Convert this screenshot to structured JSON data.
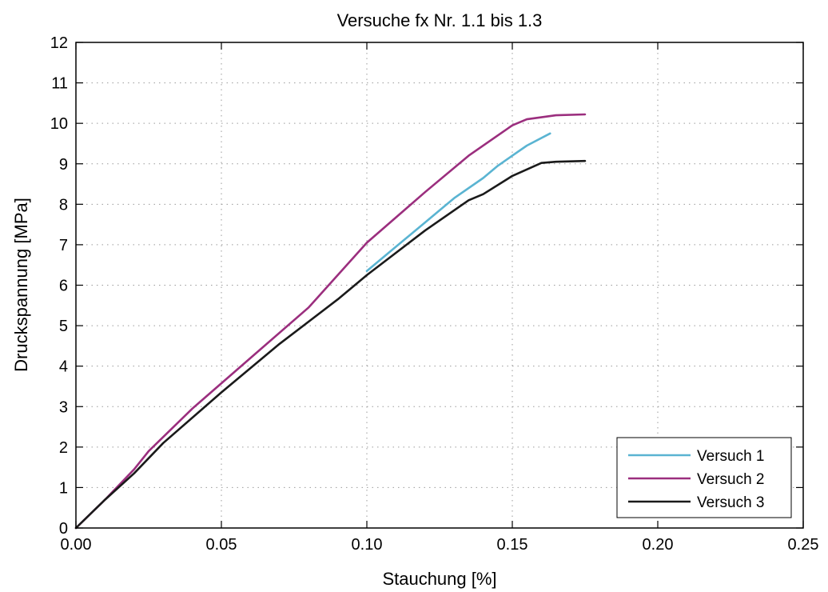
{
  "chart_data": {
    "type": "line",
    "title": "Versuche fx Nr. 1.1 bis 1.3",
    "xlabel": "Stauchung [%]",
    "ylabel": "Druckspannung [MPa]",
    "xlim": [
      0,
      0.25
    ],
    "ylim": [
      0,
      12
    ],
    "xticks": [
      0,
      0.05,
      0.1,
      0.15,
      0.2,
      0.25
    ],
    "xtick_labels": [
      "0.00",
      "0.05",
      "0.10",
      "0.15",
      "0.20",
      "0.25"
    ],
    "yticks": [
      0,
      1,
      2,
      3,
      4,
      5,
      6,
      7,
      8,
      9,
      10,
      11,
      12
    ],
    "ytick_labels": [
      "0",
      "1",
      "2",
      "3",
      "4",
      "5",
      "6",
      "7",
      "8",
      "9",
      "10",
      "11",
      "12"
    ],
    "grid": true,
    "legend_position": "bottom-right",
    "series": [
      {
        "name": "Versuch 1",
        "color": "#5ab4d2",
        "points": [
          [
            0.1,
            6.35
          ],
          [
            0.11,
            6.95
          ],
          [
            0.12,
            7.55
          ],
          [
            0.13,
            8.15
          ],
          [
            0.14,
            8.65
          ],
          [
            0.145,
            8.95
          ],
          [
            0.15,
            9.2
          ],
          [
            0.155,
            9.45
          ],
          [
            0.163,
            9.75
          ]
        ]
      },
      {
        "name": "Versuch 2",
        "color": "#9b2e7e",
        "points": [
          [
            0,
            0
          ],
          [
            0.01,
            0.7
          ],
          [
            0.02,
            1.45
          ],
          [
            0.025,
            1.9
          ],
          [
            0.04,
            2.95
          ],
          [
            0.06,
            4.2
          ],
          [
            0.08,
            5.45
          ],
          [
            0.1,
            7.05
          ],
          [
            0.12,
            8.3
          ],
          [
            0.135,
            9.2
          ],
          [
            0.145,
            9.7
          ],
          [
            0.15,
            9.95
          ],
          [
            0.155,
            10.1
          ],
          [
            0.165,
            10.2
          ],
          [
            0.175,
            10.22
          ]
        ]
      },
      {
        "name": "Versuch 3",
        "color": "#1a1a1a",
        "points": [
          [
            0,
            0
          ],
          [
            0.01,
            0.7
          ],
          [
            0.02,
            1.35
          ],
          [
            0.03,
            2.1
          ],
          [
            0.05,
            3.35
          ],
          [
            0.07,
            4.55
          ],
          [
            0.09,
            5.65
          ],
          [
            0.1,
            6.25
          ],
          [
            0.12,
            7.35
          ],
          [
            0.135,
            8.1
          ],
          [
            0.14,
            8.25
          ],
          [
            0.15,
            8.7
          ],
          [
            0.16,
            9.02
          ],
          [
            0.165,
            9.05
          ],
          [
            0.175,
            9.07
          ]
        ]
      }
    ]
  }
}
